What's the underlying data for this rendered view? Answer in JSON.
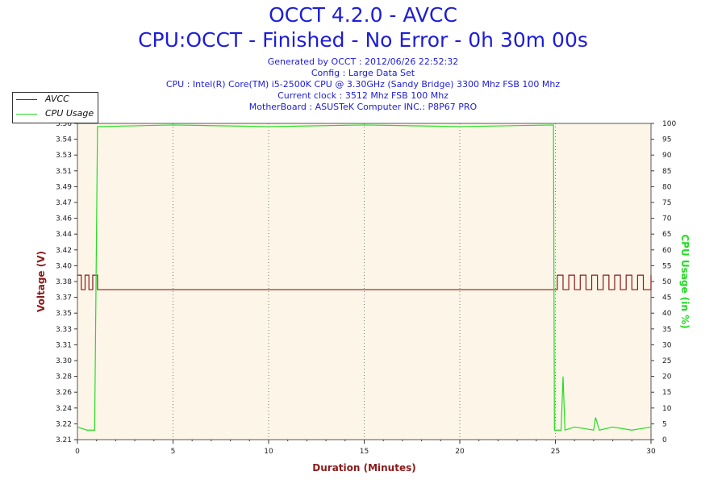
{
  "chart_data": {
    "type": "line",
    "title": "OCCT 4.2.0 - AVCC",
    "subtitle": "CPU:OCCT - Finished - No Error - 0h 30m 00s",
    "info_lines": [
      "Generated by OCCT : 2012/06/26 22:52:32",
      "Config : Large Data Set",
      "CPU : Intel(R) Core(TM) i5-2500K CPU @ 3.30GHz (Sandy Bridge) 3300 Mhz FSB 100 Mhz",
      "Current clock : 3512 Mhz FSB 100 Mhz",
      "MotherBoard : ASUSTeK Computer INC.: P8P67 PRO"
    ],
    "xlabel": "Duration (Minutes)",
    "ylabel_left": "Voltage (V)",
    "ylabel_right": "CPU Usage (in %)",
    "xlim": [
      0,
      30
    ],
    "ylim_left": [
      3.21,
      3.56
    ],
    "ylim_right": [
      0,
      100
    ],
    "x_ticks": [
      "0",
      "5",
      "10",
      "15",
      "20",
      "25",
      "30"
    ],
    "y_ticks_left": [
      "3.21",
      "3.22",
      "3.24",
      "3.26",
      "3.28",
      "3.30",
      "3.31",
      "3.33",
      "3.35",
      "3.37",
      "3.38",
      "3.40",
      "3.42",
      "3.44",
      "3.46",
      "3.47",
      "3.49",
      "3.51",
      "3.53",
      "3.54",
      "3.56"
    ],
    "y_ticks_right": [
      "0",
      "5",
      "10",
      "15",
      "20",
      "25",
      "30",
      "35",
      "40",
      "45",
      "50",
      "55",
      "60",
      "65",
      "70",
      "75",
      "80",
      "85",
      "90",
      "95",
      "100"
    ],
    "grid": true,
    "legend_position": "top-left",
    "series": [
      {
        "name": "AVCC",
        "axis": "left",
        "color": "#8b1a1a",
        "points": [
          [
            0,
            3.392
          ],
          [
            0.2,
            3.376
          ],
          [
            0.4,
            3.392
          ],
          [
            0.6,
            3.376
          ],
          [
            0.8,
            3.392
          ],
          [
            1.0,
            3.392
          ],
          [
            1.05,
            3.376
          ],
          [
            24.95,
            3.376
          ],
          [
            25.1,
            3.392
          ],
          [
            25.4,
            3.376
          ],
          [
            25.7,
            3.392
          ],
          [
            26.0,
            3.376
          ],
          [
            26.3,
            3.392
          ],
          [
            26.6,
            3.376
          ],
          [
            26.9,
            3.392
          ],
          [
            27.2,
            3.376
          ],
          [
            27.5,
            3.392
          ],
          [
            27.8,
            3.376
          ],
          [
            28.1,
            3.392
          ],
          [
            28.4,
            3.376
          ],
          [
            28.7,
            3.392
          ],
          [
            29.0,
            3.376
          ],
          [
            29.3,
            3.392
          ],
          [
            29.6,
            3.376
          ],
          [
            30,
            3.392
          ]
        ]
      },
      {
        "name": "CPU Usage",
        "axis": "right",
        "color": "#22dd22",
        "points": [
          [
            0,
            4
          ],
          [
            0.5,
            3
          ],
          [
            0.9,
            3
          ],
          [
            1.05,
            99
          ],
          [
            5,
            99.5
          ],
          [
            10,
            99
          ],
          [
            15,
            99.5
          ],
          [
            20,
            99
          ],
          [
            24.9,
            99.5
          ],
          [
            24.95,
            3
          ],
          [
            25.3,
            3
          ],
          [
            25.4,
            20
          ],
          [
            25.5,
            3
          ],
          [
            26.0,
            4
          ],
          [
            27.0,
            3
          ],
          [
            27.1,
            7
          ],
          [
            27.3,
            3
          ],
          [
            28.0,
            4
          ],
          [
            29.0,
            3
          ],
          [
            30,
            4
          ]
        ]
      }
    ]
  },
  "legend": {
    "items": [
      {
        "label": "AVCC",
        "color": "#8b1a1a"
      },
      {
        "label": "CPU Usage",
        "color": "#22dd22"
      }
    ]
  },
  "colors": {
    "title": "#1d1dd6",
    "left_axis_label": "#8b1a1a",
    "right_axis_label": "#22dd22",
    "x_axis_label": "#8b1a1a",
    "plot_background": "#fdf6e8"
  }
}
